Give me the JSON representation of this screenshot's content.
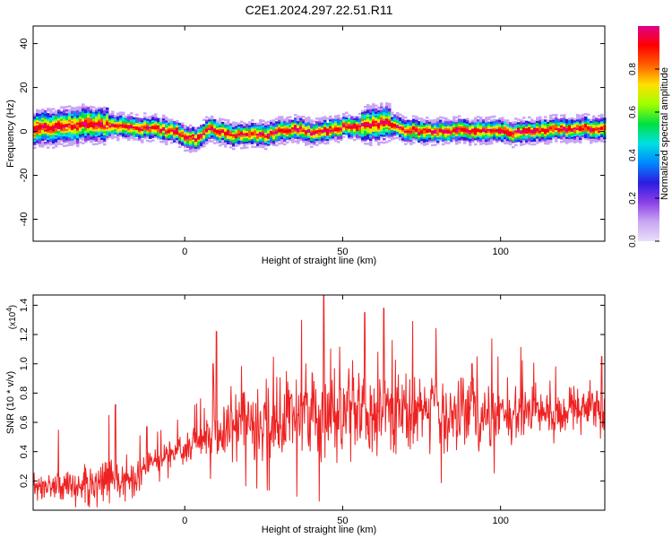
{
  "title": "C2E1.2024.297.22.51.R11",
  "colors": {
    "snr_line": "#ee2222",
    "colormap": [
      "#e8e0f8",
      "#c9a6f2",
      "#8a3ee8",
      "#2a1ee0",
      "#0088ff",
      "#00e0e0",
      "#00e040",
      "#a0ff00",
      "#ffe000",
      "#ff6000",
      "#ff0000",
      "#e0008a"
    ]
  },
  "chart_data": [
    {
      "type": "heatmap",
      "xlabel": "Height of straight line (km)",
      "ylabel": "Frequency (Hz)",
      "xlim": [
        -48,
        133
      ],
      "ylim": [
        -50,
        48
      ],
      "xticks": [
        0,
        50,
        100
      ],
      "yticks": [
        40,
        20,
        0,
        -20,
        -40
      ],
      "grid": false,
      "ridge": {
        "description_points_x": [
          -48,
          -40,
          -30,
          -20,
          -10,
          -3,
          0,
          3,
          7,
          10,
          15,
          20,
          25,
          30,
          35,
          40,
          45,
          50,
          55,
          60,
          63,
          66,
          70,
          80,
          90,
          100,
          103,
          110,
          120,
          133
        ],
        "center_hz": [
          1,
          2,
          3,
          2,
          1,
          0,
          -3,
          -4,
          1,
          0,
          -2,
          -1,
          -2,
          0,
          1,
          -1,
          0,
          2,
          2,
          3,
          4,
          2,
          0,
          0,
          0,
          0,
          -1,
          0,
          1,
          1
        ]
      },
      "colorbar": {
        "label": "Normalized spectral amplitude",
        "ticks": [
          0.0,
          0.2,
          0.4,
          0.6,
          0.8
        ],
        "tick_labels": [
          "0.0",
          "0.2",
          "0.4",
          "0.6",
          "0.8"
        ],
        "range": [
          0,
          1
        ]
      }
    },
    {
      "type": "line",
      "xlabel": "Height of straight line (km)",
      "ylabel": "SNR (10 * v/v)",
      "multiplier_label": "(x10",
      "multiplier_exp": "4",
      "multiplier_close": ")",
      "xlim": [
        -48,
        133
      ],
      "ylim": [
        0,
        1.47
      ],
      "xticks": [
        0,
        50,
        100
      ],
      "yticks": [
        0.2,
        0.4,
        0.6,
        0.8,
        1.0,
        1.2,
        1.4
      ],
      "grid": false,
      "series": [
        {
          "envelope_x": [
            -48,
            -40,
            -30,
            -20,
            -15,
            -12,
            -5,
            0,
            5,
            10,
            15,
            20,
            30,
            40,
            45,
            50,
            55,
            60,
            70,
            80,
            90,
            100,
            110,
            120,
            133
          ],
          "mean": [
            0.15,
            0.15,
            0.18,
            0.2,
            0.22,
            0.32,
            0.38,
            0.42,
            0.48,
            0.5,
            0.55,
            0.6,
            0.62,
            0.63,
            0.65,
            0.66,
            0.66,
            0.66,
            0.66,
            0.66,
            0.66,
            0.66,
            0.66,
            0.67,
            0.68
          ],
          "spread": [
            0.08,
            0.1,
            0.12,
            0.12,
            0.12,
            0.08,
            0.08,
            0.1,
            0.12,
            0.15,
            0.18,
            0.22,
            0.25,
            0.28,
            0.3,
            0.28,
            0.28,
            0.28,
            0.26,
            0.24,
            0.22,
            0.2,
            0.18,
            0.16,
            0.16
          ],
          "peaks": [
            [
              -40,
              0.55
            ],
            [
              -24,
              0.65
            ],
            [
              -22,
              0.72
            ],
            [
              -12,
              0.57
            ],
            [
              9,
              1.0
            ],
            [
              10,
              1.22
            ],
            [
              37,
              1.3
            ],
            [
              44,
              1.47
            ],
            [
              57,
              1.35
            ],
            [
              63,
              1.38
            ],
            [
              91,
              1.0
            ],
            [
              132,
              1.05
            ]
          ],
          "n_points": 1200
        }
      ]
    }
  ]
}
